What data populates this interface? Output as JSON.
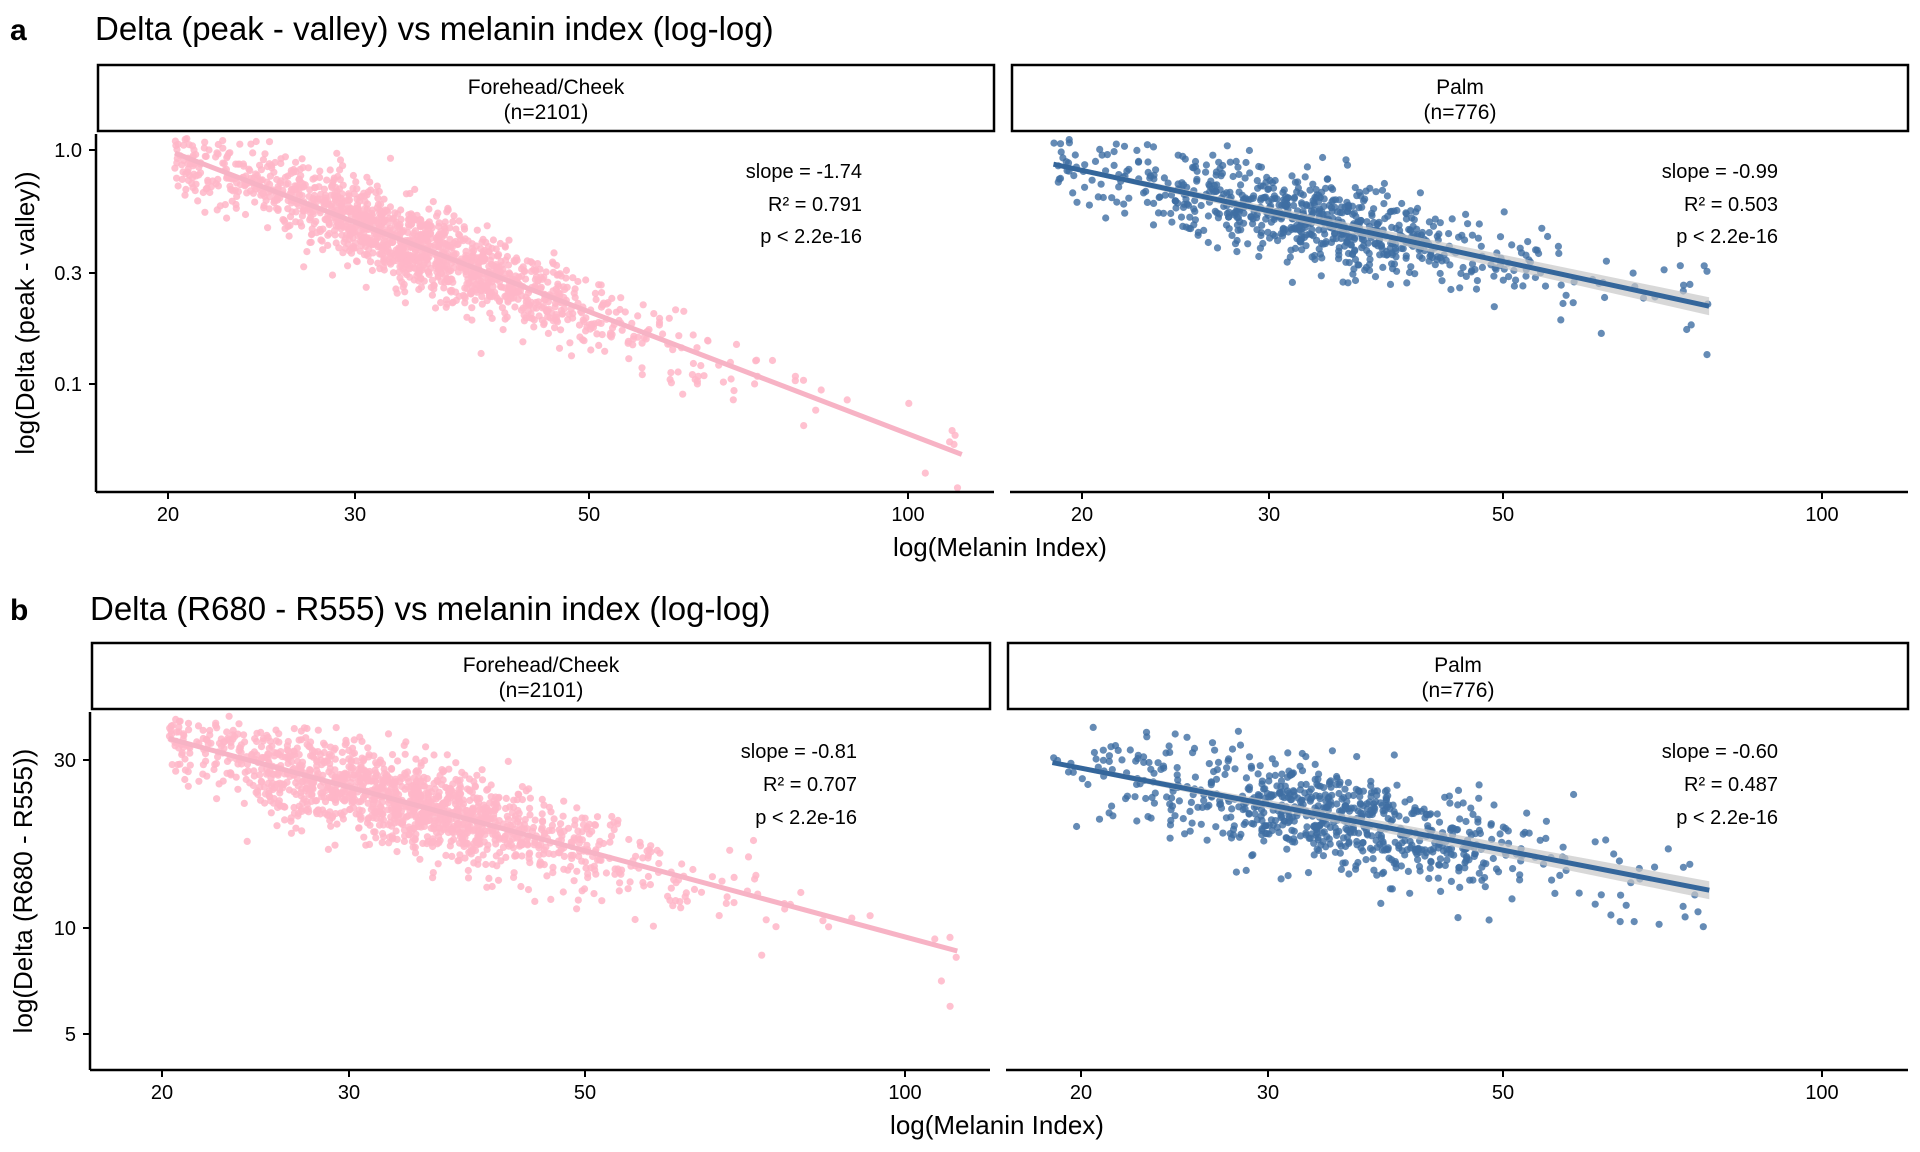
{
  "colors": {
    "forehead": "#ffb6c8",
    "forehead_line": "#f7b3c5",
    "palm": "#3f6ea3",
    "palm_line": "#34669b",
    "band": "#c8c8c8"
  },
  "panels": [
    {
      "tag": "a",
      "title": "Delta (peak - valley) vs melanin index (log-log)",
      "xlabel": "log(Melanin Index)",
      "ylabel": "log(Delta (peak - valley))",
      "facets": [
        {
          "strip": [
            "Forehead/Cheek",
            "(n=2101)"
          ],
          "annot": [
            "slope = -1.74",
            "R² = 0.791",
            "p < 2.2e-16"
          ],
          "xticks": [
            "20",
            "30",
            "50",
            "100"
          ],
          "yticks": [
            "1.0",
            "0.3",
            "0.1"
          ]
        },
        {
          "strip": [
            "Palm",
            "(n=776)"
          ],
          "annot": [
            "slope = -0.99",
            "R² = 0.503",
            "p < 2.2e-16"
          ],
          "xticks": [
            "20",
            "30",
            "50",
            "100"
          ]
        }
      ]
    },
    {
      "tag": "b",
      "title": "Delta (R680 - R555) vs melanin index (log-log)",
      "xlabel": "log(Melanin Index)",
      "ylabel": "log(Delta (R680 - R555))",
      "facets": [
        {
          "strip": [
            "Forehead/Cheek",
            "(n=2101)"
          ],
          "annot": [
            "slope = -0.81",
            "R² = 0.707",
            "p < 2.2e-16"
          ],
          "xticks": [
            "20",
            "30",
            "50",
            "100"
          ],
          "yticks": [
            "30",
            "10",
            "5"
          ]
        },
        {
          "strip": [
            "Palm",
            "(n=776)"
          ],
          "annot": [
            "slope = -0.60",
            "R² = 0.487",
            "p < 2.2e-16"
          ],
          "xticks": [
            "20",
            "30",
            "50",
            "100"
          ]
        }
      ]
    }
  ],
  "chart_data": [
    {
      "type": "scatter",
      "title": "Delta (peak - valley) vs melanin index (log-log)",
      "xlabel": "log(Melanin Index)",
      "ylabel": "log(Delta (peak - valley))",
      "x_scale": "log",
      "y_scale": "log",
      "xlim": [
        17.5,
        125
      ],
      "ylim": [
        0.04,
        1.15
      ],
      "x_ticks": [
        20,
        30,
        50,
        100
      ],
      "y_ticks": [
        1.0,
        0.3,
        0.1
      ],
      "series": [
        {
          "name": "Forehead/Cheek",
          "n": 2101,
          "color": "#ffb6c8",
          "x_range": [
            20.3,
            113
          ],
          "center_x": 33,
          "center_y": 0.37,
          "spread": 0.16,
          "fit": {
            "slope": -1.74,
            "r2": 0.791,
            "p": "< 2.2e-16",
            "x": [
              20.3,
              112
            ],
            "y": [
              0.97,
              0.05
            ]
          }
        },
        {
          "name": "Palm",
          "n": 776,
          "color": "#3f6ea3",
          "x_range": [
            18.8,
            78
          ],
          "center_x": 32,
          "center_y": 0.52,
          "spread": 0.17,
          "fit": {
            "slope": -0.99,
            "r2": 0.503,
            "p": "< 2.2e-16",
            "x": [
              18.8,
              78
            ],
            "y": [
              0.87,
              0.215
            ]
          }
        }
      ]
    },
    {
      "type": "scatter",
      "title": "Delta (R680 - R555) vs melanin index (log-log)",
      "xlabel": "log(Melanin Index)",
      "ylabel": "log(Delta (R680 - R555))",
      "x_scale": "log",
      "y_scale": "log",
      "xlim": [
        17.5,
        125
      ],
      "ylim": [
        4.2,
        44
      ],
      "x_ticks": [
        20,
        30,
        50,
        100
      ],
      "y_ticks": [
        30,
        10,
        5
      ],
      "series": [
        {
          "name": "Forehead/Cheek",
          "n": 2101,
          "color": "#ffb6c8",
          "x_range": [
            20.3,
            113
          ],
          "center_x": 33,
          "center_y": 22,
          "spread": 0.12,
          "fit": {
            "slope": -0.81,
            "r2": 0.707,
            "p": "< 2.2e-16",
            "x": [
              20.3,
              112
            ],
            "y": [
              34.5,
              8.6
            ]
          }
        },
        {
          "name": "Palm",
          "n": 776,
          "color": "#3f6ea3",
          "x_range": [
            18.8,
            78
          ],
          "center_x": 33,
          "center_y": 19.5,
          "spread": 0.13,
          "fit": {
            "slope": -0.6,
            "r2": 0.487,
            "p": "< 2.2e-16",
            "x": [
              18.8,
              78
            ],
            "y": [
              29.5,
              12.8
            ]
          }
        }
      ]
    }
  ]
}
